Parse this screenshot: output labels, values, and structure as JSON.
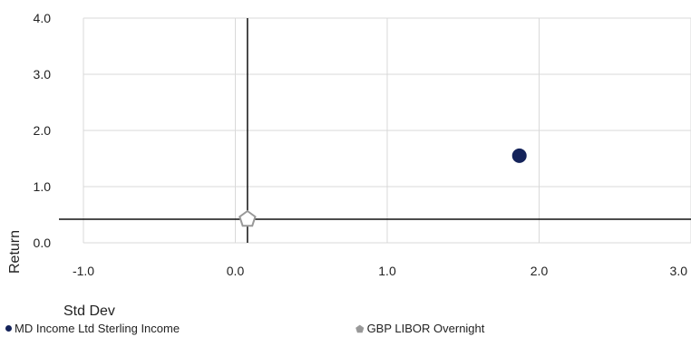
{
  "chart_data": {
    "type": "scatter",
    "xlabel": "Std Dev",
    "ylabel": "Return",
    "xlim": [
      -1.0,
      3.0
    ],
    "ylim": [
      0.0,
      4.0
    ],
    "xticks": [
      "-1.0",
      "0.0",
      "1.0",
      "2.0",
      "3.0"
    ],
    "yticks": [
      "0.0",
      "1.0",
      "2.0",
      "3.0",
      "4.0"
    ],
    "grid": true,
    "legend_position": "bottom",
    "reference_lines": {
      "x": 0.08,
      "y": 0.42
    },
    "series": [
      {
        "name": "MD Income Ltd Sterling Income",
        "marker": "circle",
        "color": "#14235a",
        "points": [
          {
            "x": 1.87,
            "y": 1.55
          }
        ]
      },
      {
        "name": "GBP LIBOR Overnight",
        "marker": "pentagon",
        "color": "#999999",
        "points": [
          {
            "x": 0.08,
            "y": 0.42
          }
        ]
      }
    ]
  }
}
